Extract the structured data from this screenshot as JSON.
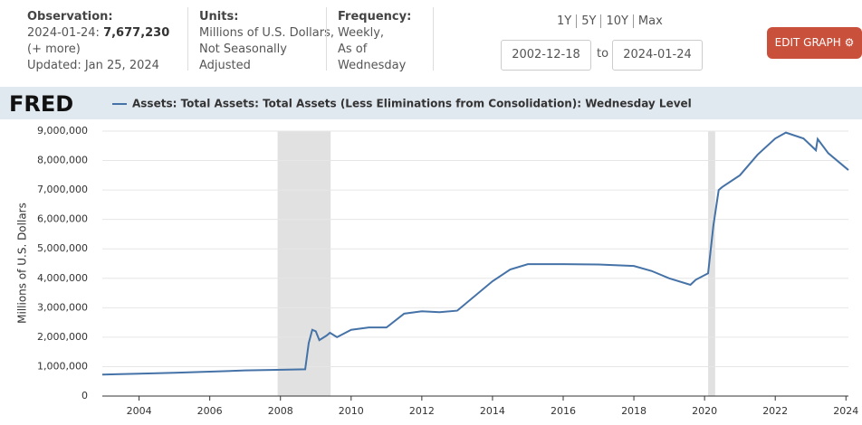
{
  "header": {
    "observation_label": "Observation:",
    "observation_date": "2024-01-24:",
    "observation_value": "7,677,230",
    "more": "(+ more)",
    "updated": "Updated: Jan 25, 2024",
    "units_label": "Units:",
    "units_lines": [
      "Millions of U.S. Dollars,",
      "Not Seasonally",
      "Adjusted"
    ],
    "frequency_label": "Frequency:",
    "frequency_lines": [
      "Weekly,",
      "As of",
      "Wednesday"
    ],
    "ranges": [
      "1Y",
      "5Y",
      "10Y",
      "Max"
    ],
    "start_date": "2002-12-18",
    "to": "to",
    "end_date": "2024-01-24",
    "edit_button": "EDIT GRAPH"
  },
  "logo": "FRED",
  "chart_data": {
    "type": "line",
    "title": "Assets: Total Assets: Total Assets (Less Eliminations from Consolidation): Wednesday Level",
    "y_label": "Millions of U.S. Dollars",
    "x": [
      2002.96,
      2004,
      2005,
      2006,
      2007,
      2007.9,
      2008.7,
      2008.8,
      2008.9,
      2009.0,
      2009.1,
      2009.3,
      2009.4,
      2009.6,
      2010,
      2010.5,
      2011,
      2011.5,
      2012,
      2012.5,
      2013,
      2014,
      2014.5,
      2015,
      2016,
      2017,
      2018,
      2018.5,
      2019,
      2019.6,
      2019.75,
      2020.1,
      2020.25,
      2020.4,
      2020.5,
      2021,
      2021.5,
      2022,
      2022.3,
      2022.8,
      2023.15,
      2023.2,
      2023.5,
      2024.07
    ],
    "series": [
      {
        "name": "Assets: Total Assets: Total Assets (Less Eliminations from Consolidation): Wednesday Level",
        "color": "#4572a7",
        "values": [
          730000,
          760000,
          790000,
          830000,
          870000,
          890000,
          910000,
          1800000,
          2250000,
          2200000,
          1900000,
          2050000,
          2150000,
          2000000,
          2250000,
          2330000,
          2330000,
          2800000,
          2880000,
          2850000,
          2900000,
          3900000,
          4300000,
          4480000,
          4480000,
          4470000,
          4420000,
          4250000,
          4000000,
          3780000,
          3950000,
          4170000,
          5800000,
          7000000,
          7100000,
          7500000,
          8200000,
          8750000,
          8950000,
          8750000,
          8350000,
          8730000,
          8250000,
          7677230
        ]
      }
    ],
    "xlim": [
      2002.96,
      2024.07
    ],
    "xticks": [
      2004,
      2006,
      2008,
      2010,
      2012,
      2014,
      2016,
      2018,
      2020,
      2022,
      2024
    ],
    "ylim": [
      0,
      9000000
    ],
    "yticks": [
      0,
      {
        "value": 1000000,
        "label": "1,000,000"
      },
      {
        "value": 2000000,
        "label": "2,000,000"
      },
      {
        "value": 3000000,
        "label": "3,000,000"
      },
      {
        "value": 4000000,
        "label": "4,000,000"
      },
      {
        "value": 5000000,
        "label": "5,000,000"
      },
      {
        "value": 6000000,
        "label": "6,000,000"
      },
      {
        "value": 7000000,
        "label": "7,000,000"
      },
      {
        "value": 8000000,
        "label": "8,000,000"
      },
      {
        "value": 9000000,
        "label": "9,000,000"
      }
    ],
    "grid": true,
    "shaded_ranges": [
      [
        2007.92,
        2009.42
      ],
      [
        2020.1,
        2020.3
      ]
    ],
    "shade_color": "#e1e1e1"
  }
}
